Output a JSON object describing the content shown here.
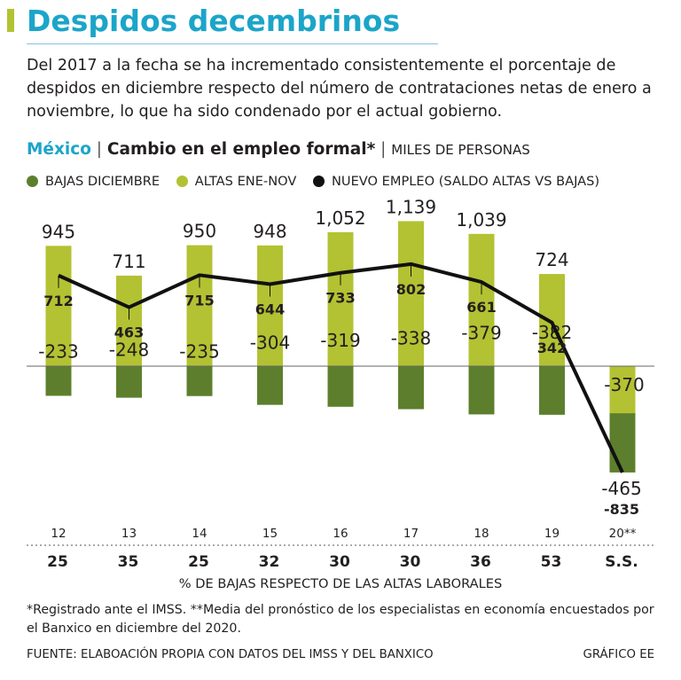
{
  "colors": {
    "accent": "#1ba5c9",
    "title_bar": "#b3c232",
    "bajas": "#5d7f2d",
    "altas": "#b3c232",
    "nuevo": "#111111",
    "text": "#231f20"
  },
  "header": {
    "title": "Despidos decembrinos",
    "intro": "Del 2017 a la fecha se ha incrementado consistentemente el porcentaje de despidos en diciembre respecto del número de contrataciones netas de enero a noviembre, lo que ha sido condenado por el actual gobierno."
  },
  "subtitle": {
    "country": "México",
    "sep1": " | ",
    "main": "Cambio en el empleo formal*",
    "sep2": " | ",
    "units": "MILES DE PERSONAS"
  },
  "legend": [
    {
      "label": "BAJAS DICIEMBRE",
      "color": "#5d7f2d"
    },
    {
      "label": "ALTAS ENE-NOV",
      "color": "#b3c232"
    },
    {
      "label": "NUEVO EMPLEO (SALDO ALTAS VS BAJAS)",
      "color": "#111111"
    }
  ],
  "chart_data": {
    "type": "bar",
    "title": "Cambio en el empleo formal",
    "units": "miles de personas",
    "categories": [
      "12",
      "13",
      "14",
      "15",
      "16",
      "17",
      "18",
      "19",
      "20**"
    ],
    "series": [
      {
        "name": "ALTAS ENE-NOV",
        "type": "bar",
        "values": [
          945,
          711,
          950,
          948,
          1052,
          1139,
          1039,
          724,
          -370
        ],
        "labels": [
          "945",
          "711",
          "950",
          "948",
          "1,052",
          "1,139",
          "1,039",
          "724",
          "-370"
        ]
      },
      {
        "name": "BAJAS DICIEMBRE",
        "type": "bar",
        "values": [
          -233,
          -248,
          -235,
          -304,
          -319,
          -338,
          -379,
          -382,
          -465
        ],
        "labels": [
          "-233",
          "-248",
          "-235",
          "-304",
          "-319",
          "-338",
          "-379",
          "-382",
          "-465"
        ]
      },
      {
        "name": "NUEVO EMPLEO (SALDO ALTAS VS BAJAS)",
        "type": "line",
        "values": [
          712,
          463,
          715,
          644,
          733,
          802,
          661,
          342,
          -835
        ],
        "labels": [
          "712",
          "463",
          "715",
          "644",
          "733",
          "802",
          "661",
          "342",
          "-835"
        ]
      }
    ],
    "pct_bajas": {
      "label": "% DE BAJAS RESPECTO DE LAS ALTAS LABORALES",
      "values": [
        "25",
        "35",
        "25",
        "32",
        "30",
        "30",
        "36",
        "53",
        "S.S."
      ]
    },
    "ylim": [
      -850,
      1150
    ]
  },
  "footnote": "*Registrado ante el IMSS. **Media del pronóstico de los especialistas en economía encuestados por el Banxico en diciembre del 2020.",
  "source": "FUENTE: ELABOACIÓN PROPIA CON DATOS DEL IMSS Y DEL BANXICO",
  "credit": "GRÁFICO EE"
}
